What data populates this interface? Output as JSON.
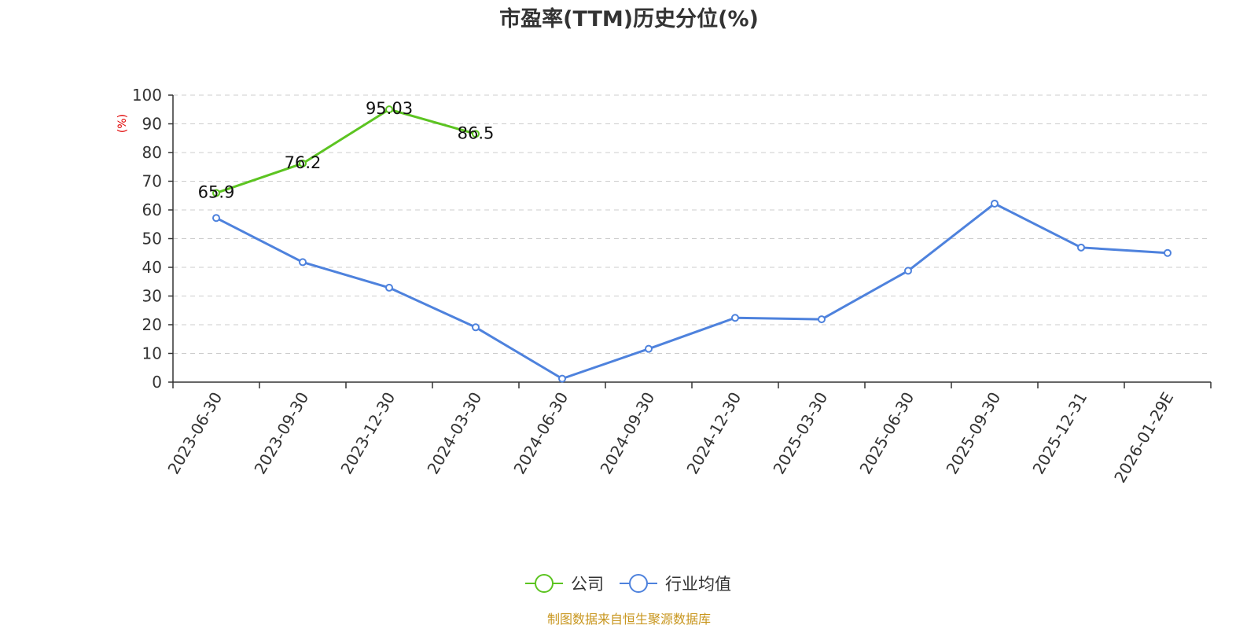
{
  "chart_data": {
    "type": "line",
    "title": "市盈率(TTM)历史分位(%)",
    "ylabel": "(%)",
    "xlabel": "",
    "ylim": [
      0,
      100
    ],
    "yticks": [
      0,
      10,
      20,
      30,
      40,
      50,
      60,
      70,
      80,
      90,
      100
    ],
    "grid": true,
    "legend_position": "bottom-center",
    "categories": [
      "2023-06-30",
      "2023-09-30",
      "2023-12-30",
      "2024-03-30",
      "2024-06-30",
      "2024-09-30",
      "2024-12-30",
      "2025-03-30",
      "2025-06-30",
      "2025-09-30",
      "2025-12-31",
      "2026-01-29E"
    ],
    "series": [
      {
        "name": "公司",
        "color": "#5cc421",
        "show_labels": true,
        "labels": [
          "65.9",
          "76.2",
          "95.03",
          "86.5"
        ],
        "values": [
          65.9,
          76.2,
          95.03,
          86.5,
          null,
          null,
          null,
          null,
          null,
          null,
          null,
          null
        ]
      },
      {
        "name": "行业均值",
        "color": "#4e82dd",
        "show_labels": false,
        "values": [
          57.2,
          41.8,
          32.9,
          19.1,
          1.2,
          11.6,
          22.4,
          21.9,
          38.8,
          62.2,
          46.9,
          45.0
        ]
      }
    ]
  },
  "source_note": "制图数据来自恒生聚源数据库"
}
